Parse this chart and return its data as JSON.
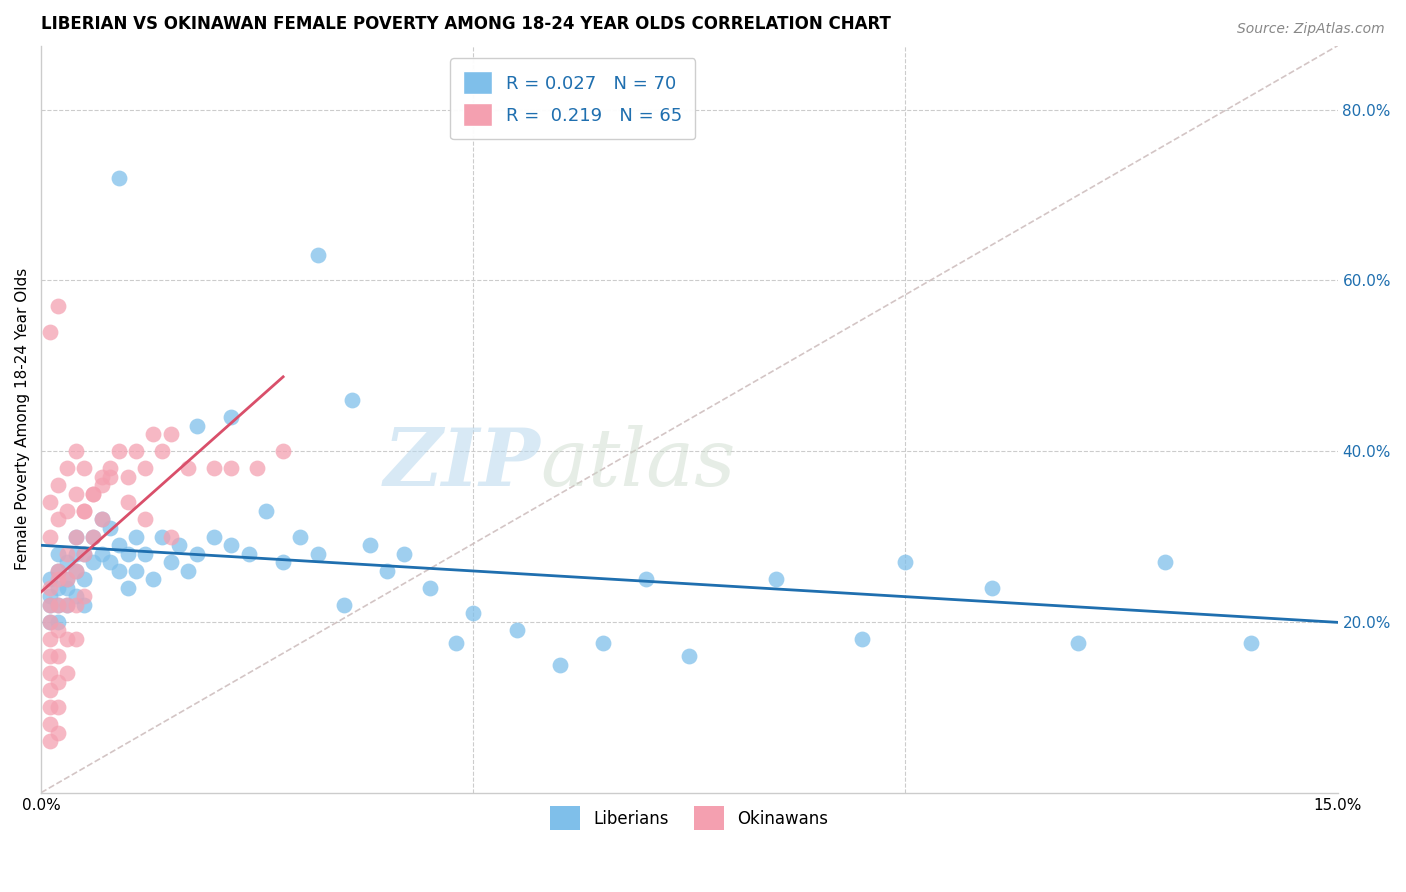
{
  "title": "LIBERIAN VS OKINAWAN FEMALE POVERTY AMONG 18-24 YEAR OLDS CORRELATION CHART",
  "source": "Source: ZipAtlas.com",
  "ylabel": "Female Poverty Among 18-24 Year Olds",
  "right_yticks": [
    0.2,
    0.4,
    0.6,
    0.8
  ],
  "right_yticklabels": [
    "20.0%",
    "40.0%",
    "60.0%",
    "80.0%"
  ],
  "xlim": [
    0.0,
    0.15
  ],
  "ylim": [
    0.0,
    0.875
  ],
  "watermark_zip": "ZIP",
  "watermark_atlas": "atlas",
  "legend_line1": "R = 0.027   N = 70",
  "legend_line2": "R =  0.219   N = 65",
  "blue_scatter": "#7fbfea",
  "pink_scatter": "#f4a0b0",
  "trend_blue": "#1f6faf",
  "trend_pink": "#d94f6a",
  "diag_color": "#ccbbbb",
  "grid_color": "#cccccc",
  "title_fontsize": 12,
  "source_fontsize": 10,
  "tick_fontsize": 11,
  "legend_fontsize": 13,
  "ylabel_fontsize": 11,
  "lib_x": [
    0.001,
    0.001,
    0.001,
    0.001,
    0.002,
    0.002,
    0.002,
    0.002,
    0.002,
    0.003,
    0.003,
    0.003,
    0.003,
    0.004,
    0.004,
    0.004,
    0.004,
    0.005,
    0.005,
    0.005,
    0.006,
    0.006,
    0.007,
    0.007,
    0.008,
    0.008,
    0.009,
    0.009,
    0.01,
    0.01,
    0.011,
    0.011,
    0.012,
    0.013,
    0.014,
    0.015,
    0.016,
    0.017,
    0.018,
    0.02,
    0.022,
    0.024,
    0.026,
    0.028,
    0.03,
    0.032,
    0.035,
    0.038,
    0.04,
    0.042,
    0.045,
    0.048,
    0.05,
    0.055,
    0.06,
    0.065,
    0.07,
    0.075,
    0.085,
    0.095,
    0.1,
    0.11,
    0.12,
    0.13,
    0.14,
    0.032,
    0.036,
    0.022,
    0.018,
    0.009
  ],
  "lib_y": [
    0.23,
    0.25,
    0.22,
    0.2,
    0.26,
    0.24,
    0.22,
    0.28,
    0.2,
    0.25,
    0.22,
    0.27,
    0.24,
    0.28,
    0.26,
    0.23,
    0.3,
    0.25,
    0.28,
    0.22,
    0.3,
    0.27,
    0.32,
    0.28,
    0.27,
    0.31,
    0.26,
    0.29,
    0.28,
    0.24,
    0.3,
    0.26,
    0.28,
    0.25,
    0.3,
    0.27,
    0.29,
    0.26,
    0.28,
    0.3,
    0.29,
    0.28,
    0.33,
    0.27,
    0.3,
    0.28,
    0.22,
    0.29,
    0.26,
    0.28,
    0.24,
    0.175,
    0.21,
    0.19,
    0.15,
    0.175,
    0.25,
    0.16,
    0.25,
    0.18,
    0.27,
    0.24,
    0.175,
    0.27,
    0.175,
    0.63,
    0.46,
    0.44,
    0.43,
    0.72
  ],
  "oki_x": [
    0.001,
    0.001,
    0.001,
    0.001,
    0.001,
    0.001,
    0.001,
    0.001,
    0.001,
    0.001,
    0.002,
    0.002,
    0.002,
    0.002,
    0.002,
    0.002,
    0.002,
    0.002,
    0.003,
    0.003,
    0.003,
    0.003,
    0.003,
    0.004,
    0.004,
    0.004,
    0.004,
    0.005,
    0.005,
    0.005,
    0.006,
    0.006,
    0.007,
    0.007,
    0.008,
    0.009,
    0.01,
    0.011,
    0.012,
    0.013,
    0.014,
    0.015,
    0.017,
    0.02,
    0.022,
    0.025,
    0.028,
    0.001,
    0.001,
    0.002,
    0.002,
    0.003,
    0.003,
    0.004,
    0.004,
    0.005,
    0.005,
    0.006,
    0.007,
    0.008,
    0.01,
    0.012,
    0.015,
    0.001,
    0.002
  ],
  "oki_y": [
    0.22,
    0.2,
    0.18,
    0.16,
    0.14,
    0.12,
    0.1,
    0.08,
    0.06,
    0.24,
    0.25,
    0.22,
    0.19,
    0.16,
    0.13,
    0.1,
    0.07,
    0.26,
    0.28,
    0.25,
    0.22,
    0.18,
    0.14,
    0.3,
    0.26,
    0.22,
    0.18,
    0.33,
    0.28,
    0.23,
    0.35,
    0.3,
    0.37,
    0.32,
    0.38,
    0.4,
    0.37,
    0.4,
    0.38,
    0.42,
    0.4,
    0.42,
    0.38,
    0.38,
    0.38,
    0.38,
    0.4,
    0.34,
    0.3,
    0.36,
    0.32,
    0.38,
    0.33,
    0.4,
    0.35,
    0.38,
    0.33,
    0.35,
    0.36,
    0.37,
    0.34,
    0.32,
    0.3,
    0.54,
    0.57
  ]
}
